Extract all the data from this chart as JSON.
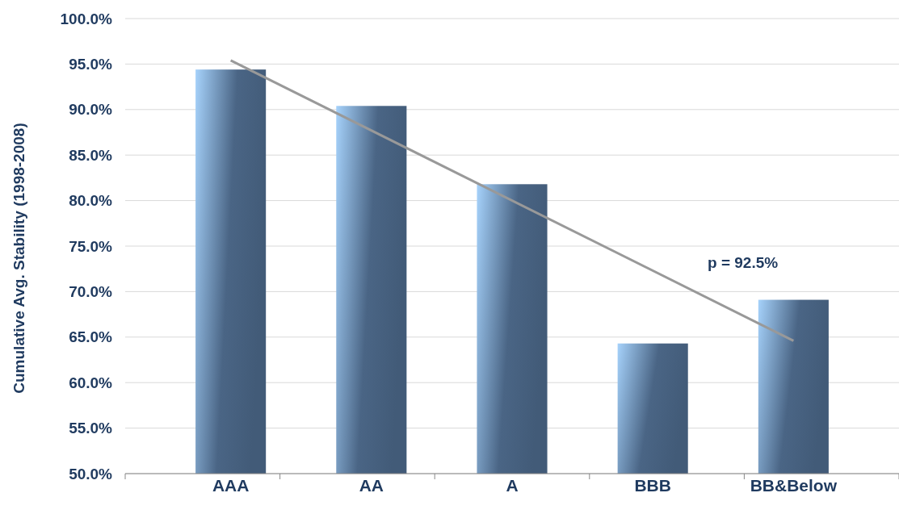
{
  "chart_data": {
    "type": "bar",
    "ylabel": "Cumulative Avg. Stability (1998-2008)",
    "categories": [
      "AAA",
      "AA",
      "A",
      "BBB",
      "BB&Below"
    ],
    "series": [
      {
        "color": "#4a6585",
        "values": [
          94.4,
          90.4,
          81.8,
          64.3,
          69.1
        ]
      },
      {
        "type": "line",
        "color": "#999999",
        "x": [
          "AAA",
          "BB&Below"
        ],
        "values": [
          95.4,
          64.6
        ]
      }
    ],
    "ylim": [
      50,
      100
    ],
    "yticks": [
      {
        "value": 50,
        "label": "50.0%"
      },
      {
        "value": 55,
        "label": "55.0%"
      },
      {
        "value": 60,
        "label": "60.0%"
      },
      {
        "value": 65,
        "label": "65.0%"
      },
      {
        "value": 70,
        "label": "70.0%"
      },
      {
        "value": 75,
        "label": "75.0%"
      },
      {
        "value": 80,
        "label": "80.0%"
      },
      {
        "value": 85,
        "label": "85.0%"
      },
      {
        "value": 90,
        "label": "90.0%"
      },
      {
        "value": 95,
        "label": "95.0%"
      },
      {
        "value": 100,
        "label": "100.0%"
      }
    ],
    "grid": "y",
    "marker": "none",
    "line_style": "solid",
    "annotations": [
      "p = 92.5%"
    ]
  }
}
